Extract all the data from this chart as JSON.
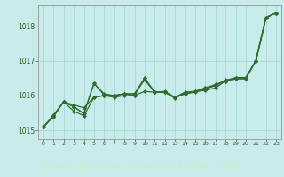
{
  "title": "Graphe pression niveau de la mer (hPa)",
  "bg_color": "#c8ecec",
  "grid_color": "#a8d8d8",
  "line_color": "#2d6e2d",
  "label_bg_color": "#2d5a1a",
  "label_text_color": "#c8f0c8",
  "xlim": [
    -0.5,
    23.5
  ],
  "ylim": [
    1014.75,
    1018.6
  ],
  "x_ticks": [
    0,
    1,
    2,
    3,
    4,
    5,
    6,
    7,
    8,
    9,
    10,
    11,
    12,
    13,
    14,
    15,
    16,
    17,
    18,
    19,
    20,
    21,
    22,
    23
  ],
  "y_ticks": [
    1015,
    1016,
    1017,
    1018
  ],
  "series": [
    [
      1015.1,
      1015.4,
      1015.82,
      1015.73,
      1015.65,
      1015.95,
      1016.0,
      1016.0,
      1016.05,
      1016.05,
      1016.45,
      1016.1,
      1016.12,
      1015.95,
      1016.1,
      1016.12,
      1016.15,
      1016.22,
      1016.42,
      1016.48,
      1016.48,
      1017.0,
      1018.25,
      1018.38
    ],
    [
      1015.1,
      1015.4,
      1015.82,
      1015.55,
      1015.42,
      1015.95,
      1016.0,
      1015.95,
      1016.0,
      1016.0,
      1016.12,
      1016.1,
      1016.1,
      1015.92,
      1016.08,
      1016.12,
      1016.22,
      1016.28,
      1016.45,
      1016.5,
      1016.5,
      1017.0,
      1018.25,
      1018.38
    ],
    [
      1015.1,
      1015.42,
      1015.82,
      1015.68,
      1015.48,
      1016.35,
      1016.05,
      1016.0,
      1016.05,
      1016.0,
      1016.5,
      1016.1,
      1016.1,
      1015.95,
      1016.05,
      1016.12,
      1016.22,
      1016.32,
      1016.42,
      1016.5,
      1016.5,
      1017.0,
      1018.25,
      1018.38
    ],
    [
      1015.1,
      1015.44,
      1015.82,
      1015.68,
      1015.48,
      1016.35,
      1016.02,
      1016.0,
      1016.05,
      1016.05,
      1016.5,
      1016.1,
      1016.1,
      1015.95,
      1016.05,
      1016.1,
      1016.18,
      1016.3,
      1016.42,
      1016.52,
      1016.52,
      1017.0,
      1018.25,
      1018.38
    ]
  ]
}
